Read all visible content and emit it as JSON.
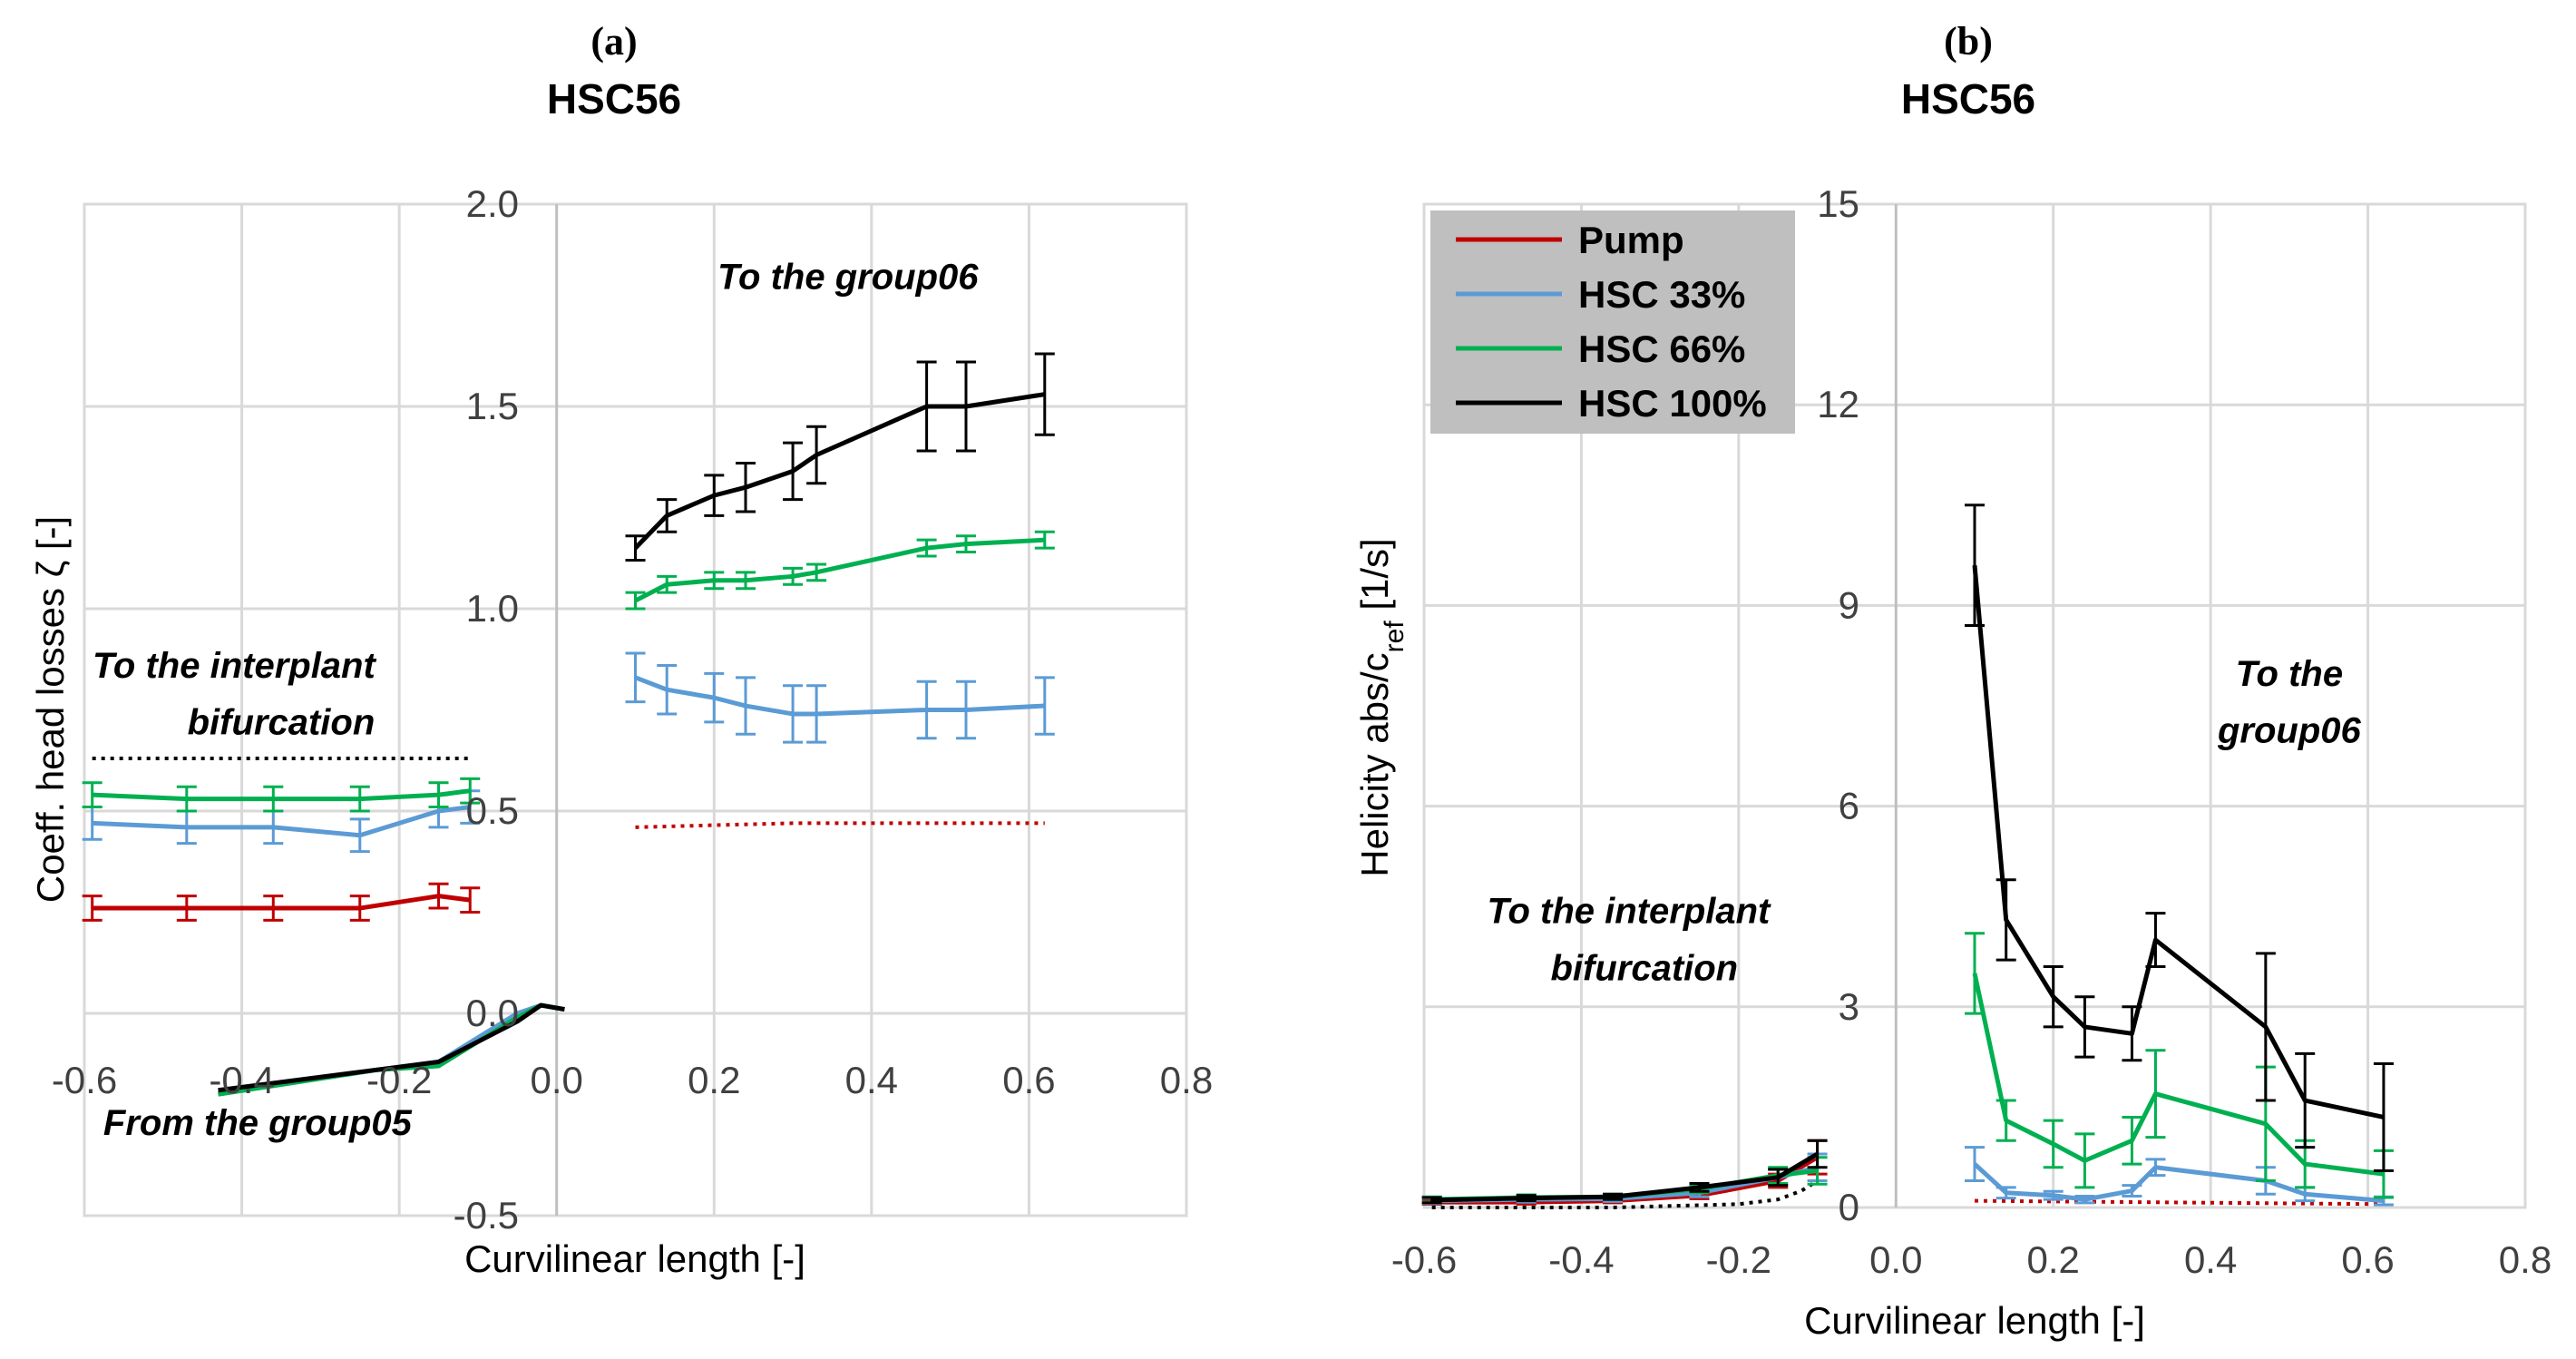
{
  "colors": {
    "pump": "#c00000",
    "hsc33": "#5b9bd5",
    "hsc66": "#00b050",
    "hsc100": "#000000",
    "grid": "#d9d9d9",
    "legend_bg": "#bfbfbf",
    "dotted": "#000000"
  },
  "chart_data": [
    {
      "panel_label": "(a)",
      "title": "HSC56",
      "type": "line",
      "xlabel": "Curvilinear length [-]",
      "ylabel": "Coeff. head losses ζ [-]",
      "xlim": [
        -0.6,
        0.8
      ],
      "ylim": [
        -0.5,
        2.0
      ],
      "xticks": [
        -0.6,
        -0.4,
        -0.2,
        0.0,
        0.2,
        0.4,
        0.6,
        0.8
      ],
      "xtick_labels": [
        "-0.6",
        "-0.4",
        "-0.2",
        "0.0",
        "0.2",
        "0.4",
        "0.6",
        "0.8"
      ],
      "yticks": [
        -0.5,
        0.0,
        0.5,
        1.0,
        1.5,
        2.0
      ],
      "ytick_labels": [
        "-0.5",
        "0.0",
        "0.5",
        "1.0",
        "1.5",
        "2.0"
      ],
      "annotations": [
        {
          "text": "To the group06",
          "x": 0.37,
          "y": 1.79
        },
        {
          "text": "To the interplant",
          "x": -0.41,
          "y": 0.83
        },
        {
          "text": "bifurcation",
          "x": -0.35,
          "y": 0.69
        },
        {
          "text": "From the group05",
          "x": -0.38,
          "y": -0.3
        }
      ],
      "series": [
        {
          "name": "Pump",
          "color_key": "pump",
          "segments": [
            {
              "x": [
                -0.59,
                -0.47,
                -0.36,
                -0.25,
                -0.15,
                -0.11
              ],
              "y": [
                0.26,
                0.26,
                0.26,
                0.26,
                0.29,
                0.28
              ],
              "err": [
                0.03,
                0.03,
                0.03,
                0.03,
                0.03,
                0.03
              ]
            }
          ]
        },
        {
          "name": "HSC 33%",
          "color_key": "hsc33",
          "segments": [
            {
              "x": [
                -0.59,
                -0.47,
                -0.36,
                -0.25,
                -0.15,
                -0.11
              ],
              "y": [
                0.47,
                0.46,
                0.46,
                0.44,
                0.5,
                0.51
              ],
              "err": [
                0.04,
                0.04,
                0.04,
                0.04,
                0.04,
                0.04
              ]
            },
            {
              "x": [
                0.1,
                0.14,
                0.2,
                0.24,
                0.3,
                0.33,
                0.47,
                0.52,
                0.62
              ],
              "y": [
                0.83,
                0.8,
                0.78,
                0.76,
                0.74,
                0.74,
                0.75,
                0.75,
                0.76
              ],
              "err": [
                0.06,
                0.06,
                0.06,
                0.07,
                0.07,
                0.07,
                0.07,
                0.07,
                0.07
              ]
            },
            {
              "x": [
                -0.43,
                -0.23,
                -0.15,
                -0.05,
                -0.02,
                0.01
              ],
              "y": [
                -0.2,
                -0.14,
                -0.12,
                0.0,
                0.02,
                0.01
              ],
              "err": null
            }
          ]
        },
        {
          "name": "HSC 66%",
          "color_key": "hsc66",
          "segments": [
            {
              "x": [
                -0.59,
                -0.47,
                -0.36,
                -0.25,
                -0.15,
                -0.11
              ],
              "y": [
                0.54,
                0.53,
                0.53,
                0.53,
                0.54,
                0.55
              ],
              "err": [
                0.03,
                0.03,
                0.03,
                0.03,
                0.03,
                0.03
              ]
            },
            {
              "x": [
                0.1,
                0.14,
                0.2,
                0.24,
                0.3,
                0.33,
                0.47,
                0.52,
                0.62
              ],
              "y": [
                1.02,
                1.06,
                1.07,
                1.07,
                1.08,
                1.09,
                1.15,
                1.16,
                1.17
              ],
              "err": [
                0.02,
                0.02,
                0.02,
                0.02,
                0.02,
                0.02,
                0.02,
                0.02,
                0.02
              ]
            },
            {
              "x": [
                -0.43,
                -0.23,
                -0.15,
                -0.05,
                -0.02,
                0.01
              ],
              "y": [
                -0.2,
                -0.14,
                -0.13,
                -0.01,
                0.02,
                0.01
              ],
              "err": null
            }
          ]
        },
        {
          "name": "HSC 100%",
          "color_key": "hsc100",
          "segments": [
            {
              "x": [
                0.1,
                0.14,
                0.2,
                0.24,
                0.3,
                0.33,
                0.47,
                0.52,
                0.62
              ],
              "y": [
                1.15,
                1.23,
                1.28,
                1.3,
                1.34,
                1.38,
                1.5,
                1.5,
                1.53
              ],
              "err": [
                0.03,
                0.04,
                0.05,
                0.06,
                0.07,
                0.07,
                0.11,
                0.11,
                0.1
              ]
            },
            {
              "x": [
                -0.43,
                -0.23,
                -0.15,
                -0.05,
                -0.02,
                0.01
              ],
              "y": [
                -0.19,
                -0.14,
                -0.12,
                -0.02,
                0.02,
                0.01
              ],
              "err": null
            }
          ]
        }
      ],
      "dotted": [
        {
          "color_key": "dotted",
          "x": [
            -0.59,
            -0.11
          ],
          "y": [
            0.63,
            0.63
          ]
        },
        {
          "color_key": "pump",
          "x": [
            0.1,
            0.3,
            0.62
          ],
          "y": [
            0.46,
            0.47,
            0.47
          ]
        }
      ]
    },
    {
      "panel_label": "(b)",
      "title": "HSC56",
      "type": "line",
      "xlabel": "Curvilinear length [-]",
      "ylabel": "Helicity abs/cref [1/s]",
      "xlim": [
        -0.6,
        0.8
      ],
      "ylim": [
        0,
        15
      ],
      "xticks": [
        -0.6,
        -0.4,
        -0.2,
        0.0,
        0.2,
        0.4,
        0.6,
        0.8
      ],
      "xtick_labels": [
        "-0.6",
        "-0.4",
        "-0.2",
        "0.0",
        "0.2",
        "0.4",
        "0.6",
        "0.8"
      ],
      "yticks": [
        0,
        3,
        6,
        9,
        12,
        15
      ],
      "ytick_labels": [
        "0",
        "3",
        "6",
        "9",
        "12",
        "15"
      ],
      "legend": {
        "position": "top-left",
        "entries": [
          "Pump",
          "HSC 33%",
          "HSC 66%",
          "HSC 100%"
        ]
      },
      "annotations": [
        {
          "text": "To the",
          "x": 0.5,
          "y": 7.8
        },
        {
          "text": "group06",
          "x": 0.5,
          "y": 6.95
        },
        {
          "text": "To the interplant",
          "x": -0.34,
          "y": 4.25
        },
        {
          "text": "bifurcation",
          "x": -0.32,
          "y": 3.4
        }
      ],
      "series": [
        {
          "name": "Pump",
          "color_key": "pump",
          "segments": [
            {
              "x": [
                -0.59,
                -0.47,
                -0.36,
                -0.25,
                -0.15,
                -0.1
              ],
              "y": [
                0.08,
                0.08,
                0.1,
                0.18,
                0.4,
                0.75
              ],
              "err": [
                0.03,
                0.03,
                0.03,
                0.05,
                0.1,
                0.25
              ]
            }
          ]
        },
        {
          "name": "HSC 33%",
          "color_key": "hsc33",
          "segments": [
            {
              "x": [
                -0.59,
                -0.47,
                -0.36,
                -0.25,
                -0.15,
                -0.1
              ],
              "y": [
                0.1,
                0.12,
                0.13,
                0.22,
                0.45,
                0.6
              ],
              "err": [
                0.04,
                0.04,
                0.04,
                0.06,
                0.12,
                0.2
              ]
            },
            {
              "x": [
                0.1,
                0.14,
                0.2,
                0.24,
                0.3,
                0.33,
                0.47,
                0.52,
                0.62
              ],
              "y": [
                0.65,
                0.22,
                0.18,
                0.12,
                0.25,
                0.6,
                0.4,
                0.2,
                0.1
              ],
              "err": [
                0.25,
                0.08,
                0.06,
                0.05,
                0.08,
                0.12,
                0.2,
                0.1,
                0.06
              ]
            }
          ]
        },
        {
          "name": "HSC 66%",
          "color_key": "hsc66",
          "segments": [
            {
              "x": [
                -0.59,
                -0.47,
                -0.36,
                -0.25,
                -0.15,
                -0.1
              ],
              "y": [
                0.12,
                0.15,
                0.16,
                0.28,
                0.48,
                0.55
              ],
              "err": [
                0.04,
                0.04,
                0.04,
                0.06,
                0.12,
                0.2
              ]
            },
            {
              "x": [
                0.1,
                0.14,
                0.2,
                0.24,
                0.3,
                0.33,
                0.47,
                0.52,
                0.62
              ],
              "y": [
                3.5,
                1.3,
                0.95,
                0.7,
                1.0,
                1.7,
                1.25,
                0.65,
                0.5
              ],
              "err": [
                0.6,
                0.3,
                0.35,
                0.4,
                0.35,
                0.65,
                0.85,
                0.35,
                0.35
              ]
            }
          ]
        },
        {
          "name": "HSC 100%",
          "color_key": "hsc100",
          "segments": [
            {
              "x": [
                -0.59,
                -0.47,
                -0.36,
                -0.25,
                -0.15,
                -0.1
              ],
              "y": [
                0.11,
                0.14,
                0.16,
                0.3,
                0.45,
                0.8
              ],
              "err": [
                0.04,
                0.04,
                0.04,
                0.06,
                0.12,
                0.2
              ]
            },
            {
              "x": [
                0.1,
                0.14,
                0.2,
                0.24,
                0.3,
                0.33,
                0.47,
                0.52,
                0.62
              ],
              "y": [
                9.6,
                4.3,
                3.15,
                2.7,
                2.6,
                4.0,
                2.7,
                1.6,
                1.35
              ],
              "err": [
                0.9,
                0.6,
                0.45,
                0.45,
                0.4,
                0.4,
                1.1,
                0.7,
                0.8
              ]
            }
          ]
        }
      ],
      "dotted": [
        {
          "color_key": "dotted",
          "x": [
            -0.59,
            -0.36,
            -0.2,
            -0.15,
            -0.12,
            -0.1
          ],
          "y": [
            0.0,
            0.0,
            0.05,
            0.12,
            0.25,
            0.4
          ]
        },
        {
          "color_key": "pump",
          "x": [
            0.1,
            0.62
          ],
          "y": [
            0.1,
            0.05
          ]
        }
      ]
    }
  ]
}
